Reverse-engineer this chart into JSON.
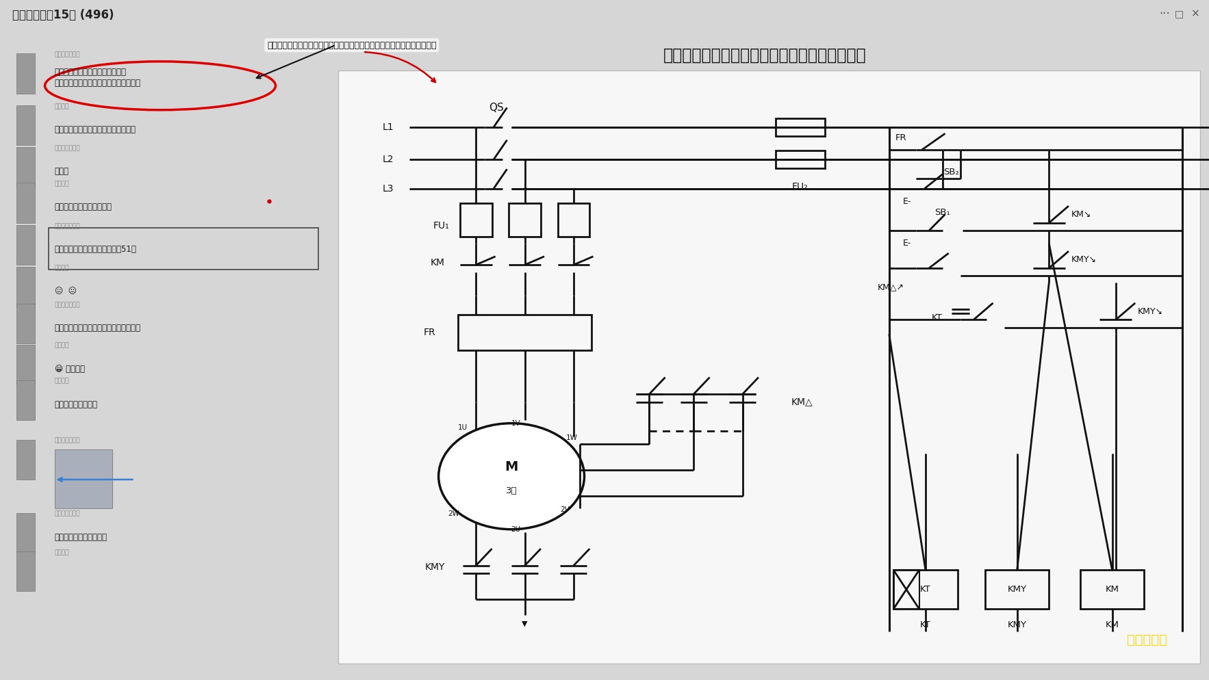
{
  "title_main": "三相异步电动机星三角降压启动控制线路原理图",
  "title_group": "电工交流群～15群 (496)",
  "chat_bg": "#e2e2e2",
  "diagram_bg": "#ebebeb",
  "window_bg": "#f0f0f0",
  "watermark": "我是大佬哥",
  "watermark_color": "#FFD700",
  "chat_messages": [
    {
      "name": "越努力越幸运！",
      "msg": "就给的这个图（考试），三相异步电动机星三角降压启动控制线路的安装。",
      "oval": true
    },
    {
      "name": "背影先生",
      "msg": "你的是什么手机，这像素不敢恭维了。"
    },
    {
      "name": "越努力越幸运！",
      "msg": "太难了"
    },
    {
      "name": "一抹湛蓝",
      "msg": "你按照图接是绝对不会错的"
    },
    {
      "name": "越努力越幸运！",
      "msg": "原理也没讲出来 🥺，结果才考了51分",
      "box": true
    },
    {
      "name": "一抹湛蓝",
      "msg": "😐  😐"
    },
    {
      "name": "越努力越幸运！",
      "msg": "考试时急急忙忙拍的，就怕监考老师看见"
    },
    {
      "name": "背影先生",
      "msg": "😁 原来如此"
    },
    {
      "name": "一抹湛蓝",
      "msg": "让你不许看图接啊？"
    },
    {
      "name": "越努力越幸运！",
      "msg": "",
      "is_image": true
    },
    {
      "name": "越努力越幸运！",
      "msg": "看图接，不给看手机啊！"
    },
    {
      "name": "一抹湛蓝",
      "msg": ""
    }
  ]
}
